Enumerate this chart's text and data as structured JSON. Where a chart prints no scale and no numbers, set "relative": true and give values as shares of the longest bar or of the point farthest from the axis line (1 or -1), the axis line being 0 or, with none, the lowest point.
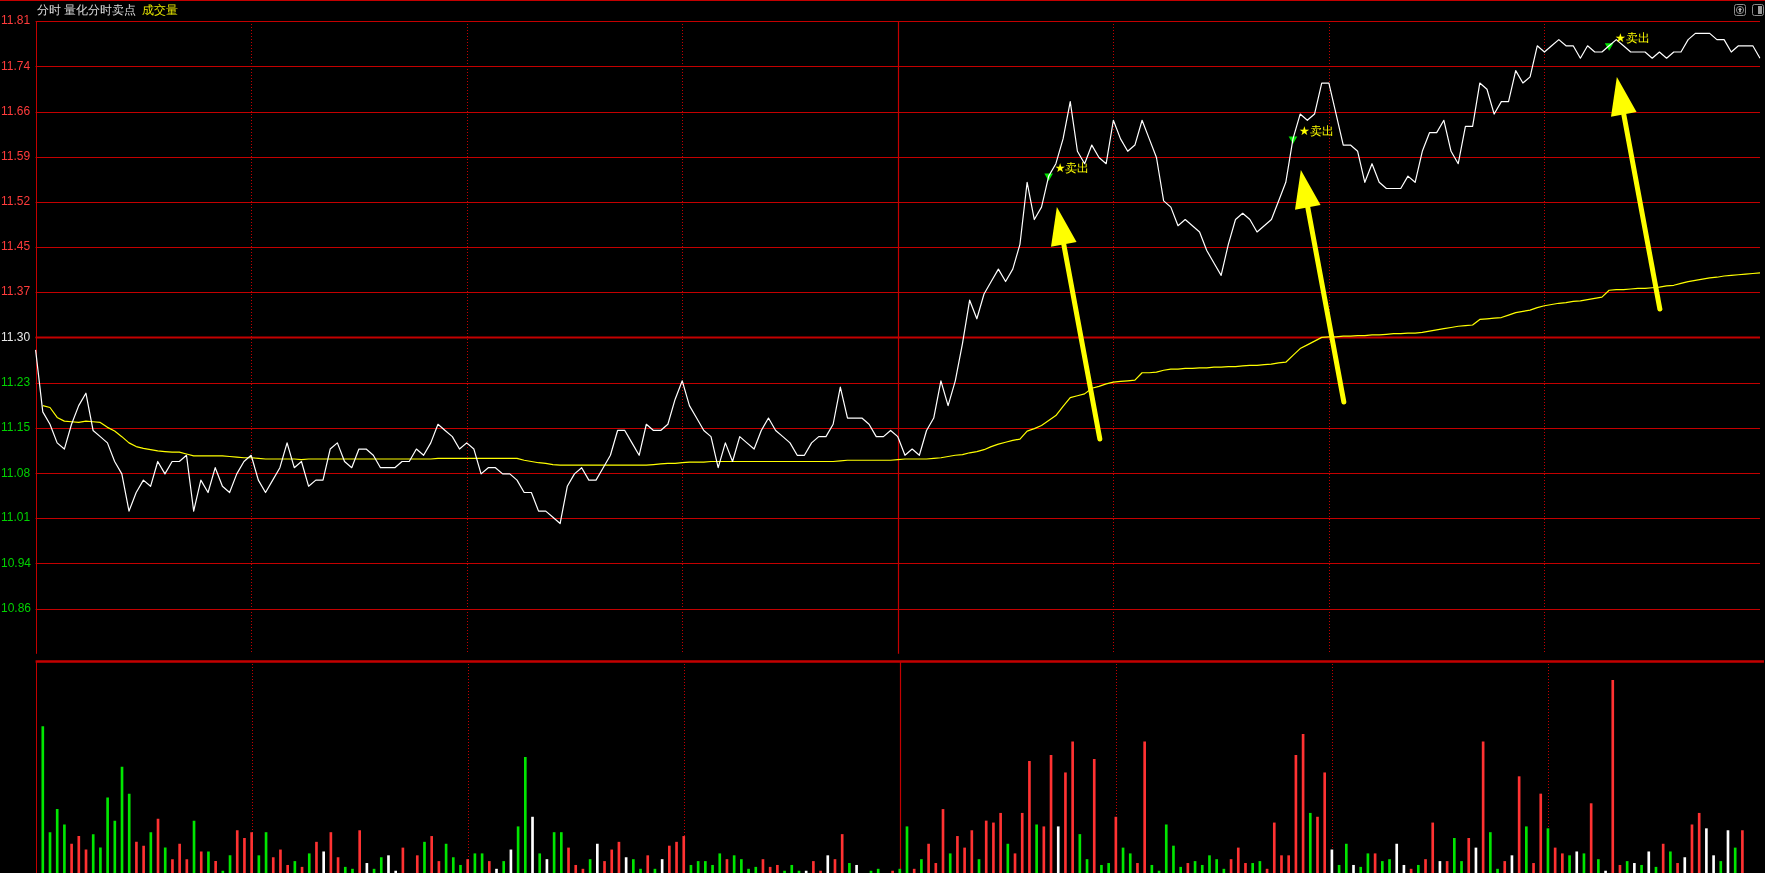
{
  "chart_data": [
    {
      "type": "line",
      "title": "分时 量化分时卖点",
      "subtitle": "成交量",
      "categories": [
        null,
        null,
        null,
        null,
        null,
        null,
        null,
        null,
        null,
        null,
        null,
        null,
        null,
        null,
        null,
        null,
        null,
        null,
        null,
        null,
        null,
        null,
        null,
        null,
        null,
        null,
        null,
        null,
        null,
        null,
        null,
        null,
        null,
        null,
        null,
        null,
        null,
        null,
        null,
        null,
        null,
        null,
        null,
        null,
        null,
        null,
        null,
        null,
        null,
        null,
        null,
        null,
        null,
        null,
        null,
        null,
        null,
        null,
        null,
        null,
        null,
        null,
        null,
        null,
        null,
        null,
        null,
        null,
        null,
        null,
        null,
        null,
        null,
        null,
        null,
        null,
        null,
        null,
        null,
        null,
        null,
        null,
        null,
        null,
        null,
        null,
        null,
        null,
        null,
        null,
        null,
        null,
        null,
        null,
        null,
        null,
        null,
        null,
        null,
        null,
        null,
        null,
        null,
        null,
        null,
        null,
        null,
        null,
        null,
        null,
        null,
        null,
        null,
        null,
        null,
        null,
        null,
        null,
        null,
        null,
        null,
        null,
        null,
        null,
        null,
        null,
        null,
        null,
        null,
        null,
        null,
        null,
        null,
        null,
        null,
        null,
        null,
        null,
        null,
        null,
        null,
        null,
        null,
        null,
        null,
        null,
        null,
        null,
        null,
        null,
        null,
        null,
        null,
        null,
        null,
        null,
        null,
        null,
        null,
        null,
        null,
        null,
        null,
        null,
        null,
        null,
        null,
        null,
        null,
        null,
        null,
        null,
        null,
        null,
        null,
        null,
        null,
        null,
        null,
        null,
        null,
        null,
        null,
        null,
        null,
        null,
        null,
        null,
        null,
        null,
        null,
        null,
        null,
        null,
        null,
        null,
        null,
        null,
        null,
        null,
        null,
        null,
        null,
        null,
        null,
        null,
        null,
        null,
        null,
        null,
        null,
        null,
        null,
        null,
        null,
        null,
        null,
        null,
        null,
        null,
        null,
        null,
        null,
        null,
        null,
        null,
        null,
        null,
        null,
        null,
        null,
        null,
        null,
        null,
        null,
        null,
        null,
        null,
        null,
        null,
        null
      ],
      "series": [
        {
          "color": "#ffffff",
          "values": [
            11.28,
            11.18,
            11.16,
            11.13,
            11.12,
            11.16,
            11.19,
            11.21,
            11.15,
            11.14,
            11.13,
            11.1,
            11.08,
            11.02,
            11.05,
            11.07,
            11.06,
            11.1,
            11.08,
            11.1,
            11.1,
            11.11,
            11.02,
            11.07,
            11.05,
            11.09,
            11.06,
            11.05,
            11.08,
            11.1,
            11.11,
            11.07,
            11.05,
            11.07,
            11.09,
            11.13,
            11.09,
            11.1,
            11.06,
            11.07,
            11.07,
            11.12,
            11.13,
            11.1,
            11.09,
            11.12,
            11.12,
            11.11,
            11.09,
            11.09,
            11.09,
            11.1,
            11.1,
            11.12,
            11.11,
            11.13,
            11.16,
            11.15,
            11.14,
            11.12,
            11.13,
            11.12,
            11.08,
            11.09,
            11.09,
            11.08,
            11.08,
            11.07,
            11.05,
            11.05,
            11.02,
            11.02,
            11.01,
            11.0,
            11.06,
            11.08,
            11.09,
            11.07,
            11.07,
            11.09,
            11.11,
            11.15,
            11.15,
            11.13,
            11.11,
            11.16,
            11.15,
            11.15,
            11.16,
            11.2,
            11.23,
            11.19,
            11.17,
            11.15,
            11.14,
            11.09,
            11.13,
            11.1,
            11.14,
            11.13,
            11.12,
            11.15,
            11.17,
            11.15,
            11.14,
            11.13,
            11.11,
            11.11,
            11.13,
            11.14,
            11.14,
            11.16,
            11.22,
            11.17,
            11.17,
            11.17,
            11.16,
            11.14,
            11.14,
            11.15,
            11.14,
            11.11,
            11.12,
            11.11,
            11.15,
            11.17,
            11.23,
            11.19,
            11.23,
            11.29,
            11.36,
            11.33,
            11.37,
            11.39,
            11.41,
            11.39,
            11.41,
            11.45,
            11.55,
            11.49,
            11.51,
            11.56,
            11.58,
            11.62,
            11.68,
            11.6,
            11.58,
            11.61,
            11.59,
            11.58,
            11.65,
            11.62,
            11.6,
            11.61,
            11.65,
            11.62,
            11.59,
            11.52,
            11.51,
            11.48,
            11.49,
            11.48,
            11.47,
            11.44,
            11.42,
            11.4,
            11.45,
            11.49,
            11.5,
            11.49,
            11.47,
            11.48,
            11.49,
            11.52,
            11.55,
            11.62,
            11.66,
            11.65,
            11.66,
            11.71,
            11.71,
            11.66,
            11.61,
            11.61,
            11.6,
            11.55,
            11.58,
            11.55,
            11.54,
            11.54,
            11.54,
            11.56,
            11.55,
            11.6,
            11.63,
            11.63,
            11.65,
            11.6,
            11.58,
            11.64,
            11.64,
            11.71,
            11.7,
            11.66,
            11.68,
            11.68,
            11.73,
            11.71,
            11.72,
            11.77,
            11.76,
            11.77,
            11.78,
            11.77,
            11.77,
            11.75,
            11.77,
            11.76,
            11.76,
            11.77,
            11.78,
            11.77,
            11.76,
            11.76,
            11.76,
            11.75,
            11.76,
            11.75,
            11.76,
            11.76,
            11.78,
            11.79,
            11.79,
            11.79,
            11.78,
            11.78,
            11.76,
            11.77,
            11.77,
            11.77,
            11.75
          ]
        },
        {
          "color": "#ffff00",
          "values": [
            null,
            11.19,
            11.187,
            11.171,
            11.165,
            11.164,
            11.163,
            11.165,
            11.164,
            11.163,
            11.155,
            11.149,
            11.14,
            11.13,
            11.124,
            11.121,
            11.119,
            11.117,
            11.116,
            11.115,
            11.115,
            11.112,
            11.109,
            11.109,
            11.109,
            11.109,
            11.109,
            11.108,
            11.107,
            11.106,
            11.106,
            11.105,
            11.104,
            11.104,
            11.104,
            11.104,
            11.104,
            11.103,
            11.104,
            11.104,
            11.104,
            11.104,
            11.104,
            11.104,
            11.104,
            11.104,
            11.104,
            11.104,
            11.104,
            11.104,
            11.104,
            11.104,
            11.104,
            11.104,
            11.104,
            11.104,
            11.105,
            11.105,
            11.105,
            11.105,
            11.105,
            11.105,
            11.105,
            11.105,
            11.105,
            11.105,
            11.105,
            11.105,
            11.102,
            11.1,
            11.098,
            11.097,
            11.095,
            11.094,
            11.094,
            11.094,
            11.094,
            11.094,
            11.094,
            11.094,
            11.094,
            11.094,
            11.094,
            11.094,
            11.094,
            11.094,
            11.095,
            11.096,
            11.097,
            11.097,
            11.098,
            11.099,
            11.099,
            11.099,
            11.1,
            11.1,
            11.1,
            11.1,
            11.1,
            11.1,
            11.1,
            11.1,
            11.1,
            11.1,
            11.1,
            11.1,
            11.1,
            11.1,
            11.1,
            11.1,
            11.1,
            11.1,
            11.101,
            11.102,
            11.102,
            11.102,
            11.102,
            11.102,
            11.102,
            11.102,
            11.103,
            11.104,
            11.104,
            11.104,
            11.104,
            11.105,
            11.106,
            11.108,
            11.11,
            11.111,
            11.114,
            11.116,
            11.119,
            11.124,
            11.128,
            11.131,
            11.134,
            11.136,
            11.149,
            11.153,
            11.158,
            11.166,
            11.174,
            11.189,
            11.203,
            11.206,
            11.209,
            11.218,
            11.221,
            11.225,
            11.228,
            11.229,
            11.23,
            11.231,
            11.243,
            11.243,
            11.244,
            11.247,
            11.249,
            11.249,
            11.25,
            11.25,
            11.251,
            11.251,
            11.252,
            11.252,
            11.253,
            11.253,
            11.254,
            11.255,
            11.255,
            11.256,
            11.257,
            11.259,
            11.26,
            11.271,
            11.282,
            11.288,
            11.294,
            11.3,
            11.301,
            11.301,
            11.302,
            11.302,
            11.303,
            11.303,
            11.304,
            11.304,
            11.305,
            11.306,
            11.306,
            11.307,
            11.307,
            11.308,
            11.31,
            11.312,
            11.314,
            11.316,
            11.318,
            11.319,
            11.32,
            11.329,
            11.33,
            11.331,
            11.332,
            11.336,
            11.34,
            11.342,
            11.344,
            11.348,
            11.351,
            11.353,
            11.355,
            11.356,
            11.358,
            11.359,
            11.361,
            11.363,
            11.365,
            11.376,
            11.377,
            11.377,
            11.378,
            11.379,
            11.379,
            11.38,
            11.381,
            11.383,
            11.384,
            11.387,
            11.39,
            11.392,
            11.394,
            11.396,
            11.397,
            11.399,
            11.4,
            11.401,
            11.402,
            11.403,
            11.404
          ]
        },
        {
          "type": "scatter",
          "color": "#00e600",
          "marker": "triangle",
          "values": [
            null,
            null,
            null,
            null,
            null,
            null,
            null,
            null,
            null,
            null,
            null,
            null,
            null,
            null,
            null,
            null,
            null,
            null,
            null,
            null,
            null,
            null,
            null,
            null,
            null,
            null,
            null,
            null,
            null,
            null,
            null,
            null,
            null,
            null,
            null,
            null,
            null,
            null,
            null,
            null,
            null,
            null,
            null,
            null,
            null,
            null,
            null,
            null,
            null,
            null,
            null,
            null,
            null,
            null,
            null,
            null,
            null,
            null,
            null,
            null,
            null,
            null,
            null,
            null,
            null,
            null,
            null,
            null,
            null,
            null,
            null,
            null,
            null,
            null,
            null,
            null,
            null,
            null,
            null,
            null,
            null,
            null,
            null,
            null,
            null,
            null,
            null,
            null,
            null,
            null,
            null,
            null,
            null,
            null,
            null,
            null,
            null,
            null,
            null,
            null,
            null,
            null,
            null,
            null,
            null,
            null,
            null,
            null,
            null,
            null,
            null,
            null,
            null,
            null,
            null,
            null,
            null,
            null,
            null,
            null,
            null,
            null,
            null,
            null,
            null,
            null,
            null,
            null,
            null,
            null,
            null,
            null,
            null,
            null,
            null,
            null,
            null,
            null,
            null,
            null,
            null,
            11.56,
            null,
            null,
            null,
            null,
            null,
            null,
            null,
            null,
            null,
            null,
            null,
            null,
            null,
            null,
            null,
            null,
            null,
            null,
            null,
            null,
            null,
            null,
            null,
            null,
            null,
            null,
            null,
            null,
            null,
            null,
            null,
            null,
            null,
            11.62,
            null,
            null,
            null,
            null,
            null,
            null,
            null,
            null,
            null,
            null,
            null,
            null,
            null,
            null,
            null,
            null,
            null,
            null,
            null,
            null,
            null,
            null,
            null,
            null,
            null,
            null,
            null,
            null,
            null,
            null,
            null,
            null,
            null,
            null,
            null,
            null,
            null,
            null,
            null,
            null,
            null,
            null,
            null,
            11.77,
            null,
            null,
            null,
            null,
            null,
            null,
            null,
            null,
            null,
            null,
            null,
            null,
            null,
            null,
            null,
            null,
            null,
            null,
            null,
            null,
            null
          ],
          "value_labels": [
            null,
            null,
            null,
            null,
            null,
            null,
            null,
            null,
            null,
            null,
            null,
            null,
            null,
            null,
            null,
            null,
            null,
            null,
            null,
            null,
            null,
            null,
            null,
            null,
            null,
            null,
            null,
            null,
            null,
            null,
            null,
            null,
            null,
            null,
            null,
            null,
            null,
            null,
            null,
            null,
            null,
            null,
            null,
            null,
            null,
            null,
            null,
            null,
            null,
            null,
            null,
            null,
            null,
            null,
            null,
            null,
            null,
            null,
            null,
            null,
            null,
            null,
            null,
            null,
            null,
            null,
            null,
            null,
            null,
            null,
            null,
            null,
            null,
            null,
            null,
            null,
            null,
            null,
            null,
            null,
            null,
            null,
            null,
            null,
            null,
            null,
            null,
            null,
            null,
            null,
            null,
            null,
            null,
            null,
            null,
            null,
            null,
            null,
            null,
            null,
            null,
            null,
            null,
            null,
            null,
            null,
            null,
            null,
            null,
            null,
            null,
            null,
            null,
            null,
            null,
            null,
            null,
            null,
            null,
            null,
            null,
            null,
            null,
            null,
            null,
            null,
            null,
            null,
            null,
            null,
            null,
            null,
            null,
            null,
            null,
            null,
            null,
            null,
            null,
            null,
            null,
            "★卖出",
            null,
            null,
            null,
            null,
            null,
            null,
            null,
            null,
            null,
            null,
            null,
            null,
            null,
            null,
            null,
            null,
            null,
            null,
            null,
            null,
            null,
            null,
            null,
            null,
            null,
            null,
            null,
            null,
            null,
            null,
            null,
            null,
            null,
            "★卖出",
            null,
            null,
            null,
            null,
            null,
            null,
            null,
            null,
            null,
            null,
            null,
            null,
            null,
            null,
            null,
            null,
            null,
            null,
            null,
            null,
            null,
            null,
            null,
            null,
            null,
            null,
            null,
            null,
            null,
            null,
            null,
            null,
            null,
            null,
            null,
            null,
            null,
            null,
            null,
            null,
            null,
            null,
            null,
            "★卖出",
            null,
            null,
            null,
            null,
            null,
            null,
            null,
            null,
            null,
            null,
            null,
            null,
            null,
            null,
            null,
            null,
            null,
            null,
            null,
            null,
            null
          ]
        }
      ],
      "ylim": [
        10.79,
        11.81
      ],
      "yticks": [
        11.81,
        {
          "value": 11.737,
          "label": "11.74"
        },
        {
          "value": 11.664,
          "label": "11.66"
        },
        {
          "value": 11.591,
          "label": "11.59"
        },
        {
          "value": 11.519,
          "label": "11.52"
        },
        {
          "value": 11.446,
          "label": "11.45"
        },
        {
          "value": 11.373,
          "label": "11.37"
        },
        {
          "value": 11.3,
          "label": "11.30"
        },
        {
          "value": 11.227,
          "label": "11.23"
        },
        {
          "value": 11.154,
          "label": "11.15"
        },
        {
          "value": 11.081,
          "label": "11.08"
        },
        {
          "value": 11.009,
          "label": "11.01"
        },
        {
          "value": 10.936,
          "label": "10.94"
        },
        {
          "value": 10.863,
          "label": "10.86"
        }
      ],
      "tick_labels": "y",
      "grid": true,
      "ref_lines": [
        {
          "axis": "y",
          "value": 11.3
        }
      ]
    },
    {
      "type": "bar",
      "relative": true,
      "categories": [
        null,
        null,
        null,
        null,
        null,
        null,
        null,
        null,
        null,
        null,
        null,
        null,
        null,
        null,
        null,
        null,
        null,
        null,
        null,
        null,
        null,
        null,
        null,
        null,
        null,
        null,
        null,
        null,
        null,
        null,
        null,
        null,
        null,
        null,
        null,
        null,
        null,
        null,
        null,
        null,
        null,
        null,
        null,
        null,
        null,
        null,
        null,
        null,
        null,
        null,
        null,
        null,
        null,
        null,
        null,
        null,
        null,
        null,
        null,
        null,
        null,
        null,
        null,
        null,
        null,
        null,
        null,
        null,
        null,
        null,
        null,
        null,
        null,
        null,
        null,
        null,
        null,
        null,
        null,
        null,
        null,
        null,
        null,
        null,
        null,
        null,
        null,
        null,
        null,
        null,
        null,
        null,
        null,
        null,
        null,
        null,
        null,
        null,
        null,
        null,
        null,
        null,
        null,
        null,
        null,
        null,
        null,
        null,
        null,
        null,
        null,
        null,
        null,
        null,
        null,
        null,
        null,
        null,
        null,
        null,
        null,
        null,
        null,
        null,
        null,
        null,
        null,
        null,
        null,
        null,
        null,
        null,
        null,
        null,
        null,
        null,
        null,
        null,
        null,
        null,
        null,
        null,
        null,
        null,
        null,
        null,
        null,
        null,
        null,
        null,
        null,
        null,
        null,
        null,
        null,
        null,
        null,
        null,
        null,
        null,
        null,
        null,
        null,
        null,
        null,
        null,
        null,
        null,
        null,
        null,
        null,
        null,
        null,
        null,
        null,
        null,
        null,
        null,
        null,
        null,
        null,
        null,
        null,
        null,
        null,
        null,
        null,
        null,
        null,
        null,
        null,
        null,
        null,
        null,
        null,
        null,
        null,
        null,
        null,
        null,
        null,
        null,
        null,
        null,
        null,
        null,
        null,
        null,
        null,
        null,
        null,
        null,
        null,
        null,
        null,
        null,
        null,
        null,
        null,
        null,
        null,
        null,
        null,
        null,
        null,
        null,
        null,
        null,
        null,
        null,
        null,
        null,
        null,
        null,
        null,
        null,
        null,
        null,
        null,
        null,
        null
      ],
      "values": [
        null,
        0.76,
        0.21,
        0.33,
        0.25,
        0.15,
        0.19,
        0.12,
        0.2,
        0.13,
        0.39,
        0.27,
        0.55,
        0.41,
        0.16,
        0.14,
        0.21,
        0.28,
        0.13,
        0.07,
        0.15,
        0.07,
        0.27,
        0.11,
        0.11,
        0.06,
        0.01,
        0.09,
        0.22,
        0.18,
        0.21,
        0.09,
        0.21,
        0.08,
        0.12,
        0.04,
        0.06,
        0.03,
        0.1,
        0.16,
        0.11,
        0.21,
        0.08,
        0.03,
        0.02,
        0.22,
        0.05,
        0.02,
        0.08,
        0.09,
        0.01,
        0.13,
        null,
        0.09,
        0.16,
        0.19,
        0.06,
        0.15,
        0.08,
        0.04,
        0.07,
        0.1,
        0.1,
        0.06,
        0.02,
        0.06,
        0.12,
        0.24,
        0.6,
        0.29,
        0.1,
        0.07,
        0.21,
        0.21,
        0.13,
        0.04,
        0.02,
        0.07,
        0.15,
        0.06,
        0.12,
        0.16,
        0.08,
        0.07,
        0.02,
        0.09,
        0.02,
        0.07,
        0.14,
        0.16,
        0.19,
        0.04,
        0.06,
        0.06,
        0.04,
        0.1,
        0.07,
        0.09,
        0.07,
        0.02,
        0.03,
        0.07,
        0.03,
        0.04,
        0.01,
        0.04,
        0.01,
        0.01,
        0.06,
        0.01,
        0.09,
        0.07,
        0.2,
        0.05,
        0.04,
        null,
        0.01,
        0.02,
        null,
        0.01,
        0.02,
        0.24,
        0.02,
        0.07,
        0.15,
        0.05,
        0.33,
        0.1,
        0.19,
        0.13,
        0.22,
        0.07,
        0.27,
        0.26,
        0.31,
        0.15,
        0.1,
        0.31,
        0.58,
        0.25,
        0.24,
        0.61,
        0.24,
        0.52,
        0.68,
        0.2,
        0.07,
        0.59,
        0.04,
        0.05,
        0.29,
        0.13,
        0.1,
        0.05,
        0.68,
        0.04,
        0.01,
        0.25,
        0.14,
        0.03,
        0.05,
        0.06,
        0.04,
        0.09,
        0.07,
        0.02,
        0.07,
        0.13,
        0.05,
        0.05,
        0.06,
        0.02,
        0.26,
        0.09,
        0.09,
        0.61,
        0.72,
        0.31,
        0.29,
        0.52,
        0.12,
        0.04,
        0.15,
        0.04,
        0.03,
        0.1,
        0.1,
        0.06,
        0.07,
        0.15,
        0.04,
        0.02,
        0.04,
        0.07,
        0.26,
        0.06,
        0.06,
        0.18,
        0.06,
        0.18,
        0.13,
        0.68,
        0.21,
        0.02,
        0.06,
        0.09,
        0.5,
        0.24,
        0.05,
        0.41,
        0.23,
        0.13,
        0.1,
        0.09,
        0.11,
        0.1,
        0.36,
        0.07,
        0.01,
        1,
        0.04,
        0.06,
        0.05,
        0.04,
        0.11,
        0.03,
        0.15,
        0.11,
        0.05,
        0.08,
        0.25,
        0.31,
        0.23,
        0.09,
        0.06,
        0.22,
        0.13,
        0.22,
        null,
        null,
        null
      ],
      "colors": [
        null,
        "#00e600",
        "#00e600",
        "#00e600",
        "#00e600",
        "#ff3232",
        "#ff3232",
        "#ff3232",
        "#00e600",
        "#00e600",
        "#00e600",
        "#00e600",
        "#00e600",
        "#00e600",
        "#ff3232",
        "#ff3232",
        "#00e600",
        "#ff3232",
        "#00e600",
        "#ff3232",
        "#ff3232",
        "#ff3232",
        "#00e600",
        "#ff3232",
        "#00e600",
        "#ff3232",
        "#00e600",
        "#00e600",
        "#ff3232",
        "#ff3232",
        "#ff3232",
        "#00e600",
        "#00e600",
        "#ff3232",
        "#ff3232",
        "#ff3232",
        "#00e600",
        "#ff3232",
        "#00e600",
        "#ff3232",
        "#ffffff",
        "#ff3232",
        "#ff3232",
        "#00e600",
        "#00e600",
        "#ff3232",
        "#ffffff",
        "#00e600",
        "#00e600",
        "#ffffff",
        "#ffffff",
        "#ff3232",
        null,
        "#ff3232",
        "#00e600",
        "#ff3232",
        "#ff3232",
        "#00e600",
        "#00e600",
        "#00e600",
        "#ff3232",
        "#00e600",
        "#00e600",
        "#ff3232",
        "#ffffff",
        "#00e600",
        "#ffffff",
        "#00e600",
        "#00e600",
        "#ffffff",
        "#00e600",
        "#ffffff",
        "#00e600",
        "#00e600",
        "#ff3232",
        "#ff3232",
        "#ff3232",
        "#00e600",
        "#ffffff",
        "#ff3232",
        "#ff3232",
        "#ff3232",
        "#ffffff",
        "#00e600",
        "#00e600",
        "#ff3232",
        "#00e600",
        "#ffffff",
        "#ff3232",
        "#ff3232",
        "#ff3232",
        "#00e600",
        "#00e600",
        "#00e600",
        "#00e600",
        "#00e600",
        "#ff3232",
        "#00e600",
        "#00e600",
        "#00e600",
        "#00e600",
        "#ff3232",
        "#ff3232",
        "#ff3232",
        "#00e600",
        "#00e600",
        "#00e600",
        "#ffffff",
        "#ff3232",
        "#ff3232",
        "#ffffff",
        "#ff3232",
        "#ff3232",
        "#00e600",
        "#ffffff",
        null,
        "#00e600",
        "#00e600",
        null,
        "#ff3232",
        "#00e600",
        "#00e600",
        "#ff3232",
        "#00e600",
        "#ff3232",
        "#ff3232",
        "#ff3232",
        "#00e600",
        "#ff3232",
        "#ff3232",
        "#ff3232",
        "#00e600",
        "#ff3232",
        "#ff3232",
        "#ff3232",
        "#00e600",
        "#ff3232",
        "#ff3232",
        "#ff3232",
        "#00e600",
        "#ff3232",
        "#ff3232",
        "#ffffff",
        "#ff3232",
        "#ff3232",
        "#00e600",
        "#00e600",
        "#ff3232",
        "#00e600",
        "#00e600",
        "#ff3232",
        "#00e600",
        "#00e600",
        "#ff3232",
        "#ff3232",
        "#00e600",
        "#00e600",
        "#00e600",
        "#00e600",
        "#00e600",
        "#ff3232",
        "#00e600",
        "#00e600",
        "#00e600",
        "#00e600",
        "#00e600",
        "#ff3232",
        "#ff3232",
        "#ff3232",
        "#00e600",
        "#00e600",
        "#ff3232",
        "#ff3232",
        "#ff3232",
        "#ff3232",
        "#ff3232",
        "#ff3232",
        "#00e600",
        "#ff3232",
        "#ff3232",
        "#ffffff",
        "#00e600",
        "#00e600",
        "#ffffff",
        "#00e600",
        "#00e600",
        "#ff3232",
        "#00e600",
        "#00e600",
        "#ffffff",
        "#ffffff",
        "#ff3232",
        "#00e600",
        "#ff3232",
        "#ff3232",
        "#ffffff",
        "#ff3232",
        "#00e600",
        "#00e600",
        "#ff3232",
        "#ffffff",
        "#ff3232",
        "#00e600",
        "#00e600",
        "#ff3232",
        "#ffffff",
        "#ff3232",
        "#00e600",
        "#ff3232",
        "#ff3232",
        "#00e600",
        "#ff3232",
        "#ff3232",
        "#00e600",
        "#ffffff",
        "#00e600",
        "#ff3232",
        "#00e600",
        "#ffffff",
        "#ff3232",
        "#ff3232",
        "#00e600",
        "#ffffff",
        "#00e600",
        "#ffffff",
        "#00e600",
        "#ff3232",
        "#00e600",
        "#ff3232",
        "#ffffff",
        "#ff3232",
        "#ff3232",
        "#ffffff",
        "#ffffff",
        "#00e600",
        "#ffffff",
        "#00e600",
        "#ff3232",
        null,
        null,
        null
      ],
      "tick_labels": false,
      "grid": "x"
    }
  ]
}
